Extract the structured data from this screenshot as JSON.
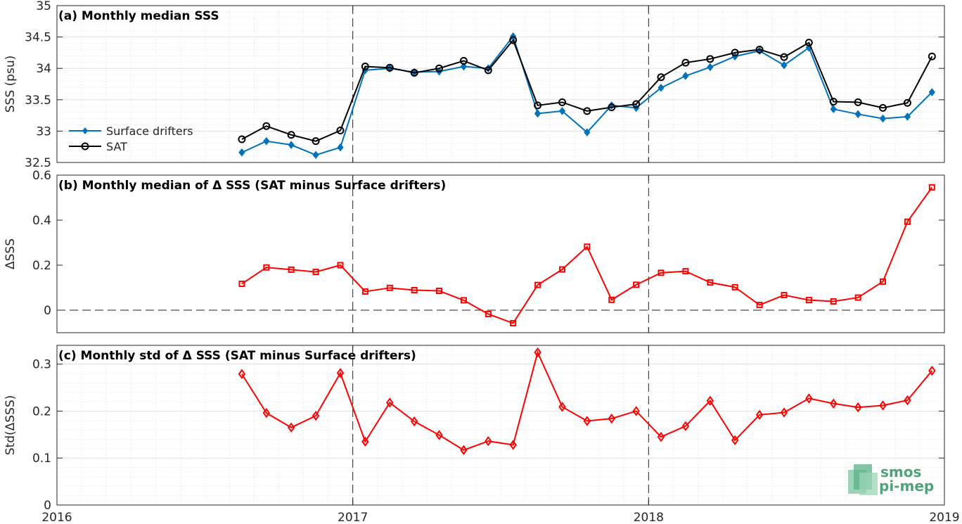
{
  "x_axis": {
    "min": 2016.0,
    "max": 2019.0,
    "ticks": [
      2016,
      2017,
      2018,
      2019
    ],
    "tick_labels": [
      "2016",
      "2017",
      "2018",
      "2019"
    ]
  },
  "logo": {
    "line1": "smos",
    "line2": "pi-mep",
    "color": "#4fa37a"
  },
  "chart_data": [
    {
      "type": "line",
      "title": "(a) Monthly median SSS",
      "ylabel": "SSS (psu)",
      "ylim": [
        32.5,
        35
      ],
      "yticks": [
        32.5,
        33,
        33.5,
        34,
        34.5,
        35
      ],
      "ytick_labels": [
        "32.5",
        "33",
        "33.5",
        "34",
        "34.5",
        "35"
      ],
      "grid": true,
      "vlines": [
        2017,
        2018
      ],
      "legend": {
        "placement": "left"
      },
      "x": [
        2016.625,
        2016.708,
        2016.792,
        2016.875,
        2016.958,
        2017.042,
        2017.125,
        2017.208,
        2017.292,
        2017.375,
        2017.458,
        2017.542,
        2017.625,
        2017.708,
        2017.792,
        2017.875,
        2017.958,
        2018.042,
        2018.125,
        2018.208,
        2018.292,
        2018.375,
        2018.458,
        2018.542,
        2018.625,
        2018.708,
        2018.792,
        2018.875,
        2018.958
      ],
      "series": [
        {
          "name": "Surface drifters",
          "color": "#0072BD",
          "marker": "diamond-filled",
          "values": [
            32.66,
            32.84,
            32.78,
            32.62,
            32.74,
            33.97,
            34.0,
            33.94,
            33.95,
            34.03,
            34.0,
            34.51,
            33.28,
            33.32,
            32.98,
            33.41,
            33.37,
            33.69,
            33.88,
            34.02,
            34.19,
            34.28,
            34.05,
            34.33,
            33.35,
            33.27,
            33.2,
            33.23,
            33.62
          ]
        },
        {
          "name": "SAT",
          "color": "#000000",
          "marker": "circle-open",
          "values": [
            32.87,
            33.08,
            32.94,
            32.84,
            33.01,
            34.03,
            34.01,
            33.93,
            34.0,
            34.12,
            33.97,
            34.45,
            33.41,
            33.46,
            33.32,
            33.38,
            33.43,
            33.86,
            34.09,
            34.15,
            34.25,
            34.3,
            34.18,
            34.41,
            33.47,
            33.46,
            33.37,
            33.45,
            34.19
          ]
        }
      ]
    },
    {
      "type": "line",
      "title": "(b) Monthly median of Δ SSS (SAT minus Surface drifters)",
      "ylabel": "ΔSSS",
      "ylim": [
        -0.1,
        0.6
      ],
      "yticks": [
        0,
        0.2,
        0.4,
        0.6
      ],
      "ytick_labels": [
        "0",
        "0.2",
        "0.4",
        "0.6"
      ],
      "grid": false,
      "vlines": [
        2017,
        2018
      ],
      "hline": 0,
      "x": [
        2016.625,
        2016.708,
        2016.792,
        2016.875,
        2016.958,
        2017.042,
        2017.125,
        2017.208,
        2017.292,
        2017.375,
        2017.458,
        2017.542,
        2017.625,
        2017.708,
        2017.792,
        2017.875,
        2017.958,
        2018.042,
        2018.125,
        2018.208,
        2018.292,
        2018.375,
        2018.458,
        2018.542,
        2018.625,
        2018.708,
        2018.792,
        2018.875,
        2018.958
      ],
      "series": [
        {
          "color": "#ff0000",
          "marker": "square-open",
          "values": [
            0.117,
            0.19,
            0.18,
            0.17,
            0.2,
            0.083,
            0.099,
            0.089,
            0.086,
            0.044,
            -0.017,
            -0.058,
            0.112,
            0.181,
            0.282,
            0.046,
            0.113,
            0.166,
            0.173,
            0.123,
            0.102,
            0.023,
            0.067,
            0.045,
            0.039,
            0.056,
            0.127,
            0.393,
            0.546
          ]
        }
      ]
    },
    {
      "type": "line",
      "title": "(c) Monthly std of Δ SSS (SAT minus Surface drifters)",
      "ylabel": "Std(ΔSSS)",
      "ylim": [
        0,
        0.34
      ],
      "yticks": [
        0,
        0.1,
        0.2,
        0.3
      ],
      "ytick_labels": [
        "0",
        "0.1",
        "0.2",
        "0.3"
      ],
      "grid": true,
      "vlines": [
        2017,
        2018
      ],
      "x": [
        2016.625,
        2016.708,
        2016.792,
        2016.875,
        2016.958,
        2017.042,
        2017.125,
        2017.208,
        2017.292,
        2017.375,
        2017.458,
        2017.542,
        2017.625,
        2017.708,
        2017.792,
        2017.875,
        2017.958,
        2018.042,
        2018.125,
        2018.208,
        2018.292,
        2018.375,
        2018.458,
        2018.542,
        2018.625,
        2018.708,
        2018.792,
        2018.875,
        2018.958
      ],
      "series": [
        {
          "color": "#ff0000",
          "marker": "diamond-open",
          "values": [
            0.279,
            0.196,
            0.165,
            0.19,
            0.281,
            0.135,
            0.218,
            0.178,
            0.149,
            0.117,
            0.136,
            0.128,
            0.325,
            0.209,
            0.179,
            0.184,
            0.2,
            0.145,
            0.168,
            0.222,
            0.138,
            0.192,
            0.197,
            0.227,
            0.216,
            0.208,
            0.212,
            0.223,
            0.286
          ]
        }
      ]
    }
  ]
}
